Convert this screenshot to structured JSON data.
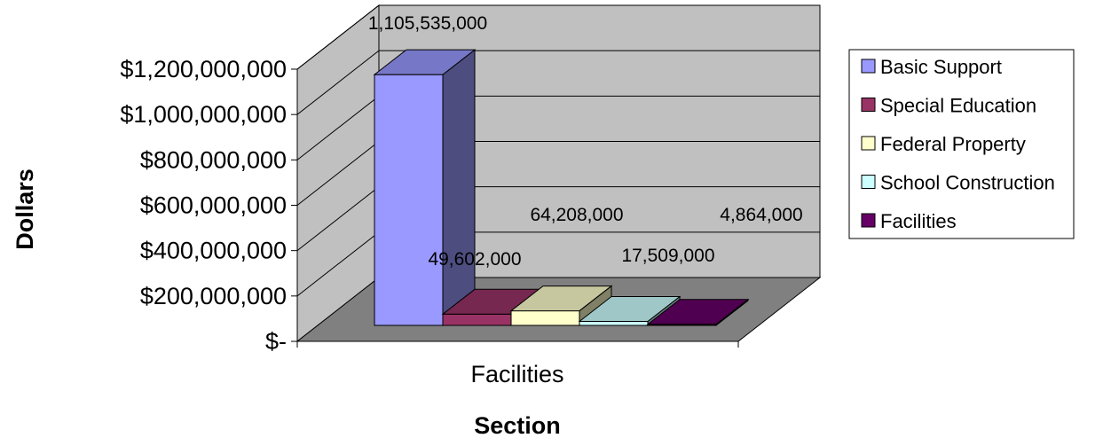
{
  "chart_data": {
    "type": "bar",
    "categories": [
      "Facilities"
    ],
    "series": [
      {
        "name": "Basic Support",
        "values": [
          1105535000
        ],
        "color": "#9999FF",
        "label": "1,105,535,000"
      },
      {
        "name": "Special Education",
        "values": [
          49602000
        ],
        "color": "#993366",
        "label": "49,602,000"
      },
      {
        "name": "Federal Property",
        "values": [
          64208000
        ],
        "color": "#FFFFCC",
        "label": "64,208,000"
      },
      {
        "name": "School Construction",
        "values": [
          17509000
        ],
        "color": "#CCFFFF",
        "label": "17,509,000"
      },
      {
        "name": "Facilities",
        "values": [
          4864000
        ],
        "color": "#660066",
        "label": "4,864,000"
      }
    ],
    "title": "",
    "xlabel": "Section",
    "ylabel": "Dollars",
    "ylim": [
      0,
      1200000000
    ],
    "ytick_labels": [
      "$-",
      "$200,000,000",
      "$400,000,000",
      "$600,000,000",
      "$800,000,000",
      "$1,000,000,000",
      "$1,200,000,000"
    ],
    "grid": true,
    "legend_position": "right",
    "colors": {
      "wall": "#C0C0C0",
      "floor": "#808080"
    }
  }
}
